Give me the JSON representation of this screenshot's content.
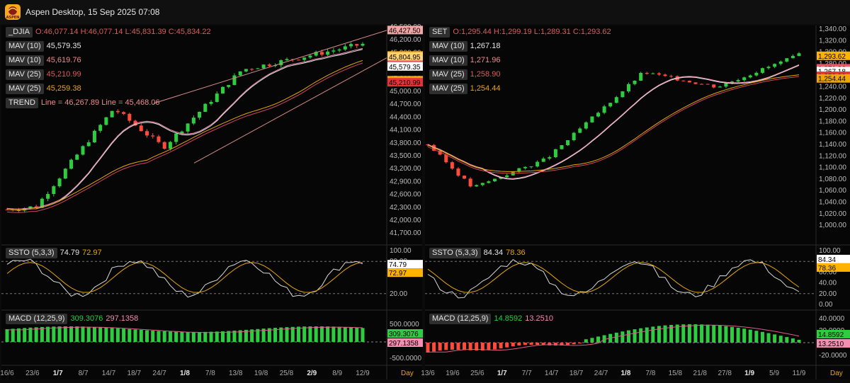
{
  "app": {
    "title": "Aspen Desktop, 15 Sep 2025 07:08",
    "logo_text": "ASPEN"
  },
  "colors": {
    "up": "#2ecc40",
    "down": "#ff4b3a",
    "pink": "#f48fb1",
    "orange": "#e6a800",
    "red_line": "#d6455a",
    "white": "#e8e8e8",
    "grid": "#1e1e1e"
  },
  "panels": [
    {
      "symbol": "_DJIA",
      "ohlc": "O:46,077.14 H:46,077.14 L:45,831.39 C:45,834.22",
      "legends": [
        {
          "name": "MAV (10)",
          "value": "45,579.35",
          "color": "#e8e8e8"
        },
        {
          "name": "MAV (10)",
          "value": "45,619.76",
          "color": "#f08a8a"
        },
        {
          "name": "MAV (25)",
          "value": "45,210.99",
          "color": "#e05a5a"
        },
        {
          "name": "MAV (25)",
          "value": "45,259.38",
          "color": "#e6a800"
        },
        {
          "name": "TREND",
          "value": "Line = 46,267.89  Line = 45,468.06",
          "color": "#f08a8a"
        }
      ],
      "price_axis": [
        "46,500.00",
        "46,200.00",
        "45,900.00",
        "45,600.00",
        "45,300.00",
        "45,000.00",
        "44,700.00",
        "44,400.00",
        "44,100.00",
        "43,800.00",
        "43,500.00",
        "43,200.00",
        "42,900.00",
        "42,600.00",
        "42,300.00",
        "42,000.00",
        "41,700.00"
      ],
      "price_tags": [
        {
          "text": "46,427.50",
          "bg": "#f4a6a6",
          "fg": "#000000",
          "value": 46427.5
        },
        {
          "text": "45,834.22",
          "bg": "#ffb300",
          "fg": "#000000",
          "value": 45834.22
        },
        {
          "text": "45,804.95",
          "bg": "#ffd27a",
          "fg": "#000000",
          "value": 45804.95
        },
        {
          "text": "45,619.76",
          "bg": "#ef5a6a",
          "fg": "#000000",
          "value": 45619.76
        },
        {
          "text": "45,579.35",
          "bg": "#ffffff",
          "fg": "#000000",
          "value": 45579.35
        },
        {
          "text": "45,259.38",
          "bg": "#f0a500",
          "fg": "#000000",
          "value": 45259.38
        },
        {
          "text": "45,210.99",
          "bg": "#e5323a",
          "fg": "#000000",
          "value": 45210.99
        }
      ],
      "ssto": {
        "name": "SSTO (5,3,3)",
        "k": "74.79",
        "d": "72.97",
        "axis": [
          "100.00",
          "80.00",
          "20.00"
        ],
        "tag_k": "74.79",
        "tag_d": "72.97"
      },
      "macd": {
        "name": "MACD (12,25,9)",
        "macd": "309.3076",
        "signal": "297.1358",
        "axis": [
          "500.0000",
          "-500.0000"
        ],
        "tag_macd": "309.3076",
        "tag_signal": "297.1358"
      },
      "dates": [
        "16/6",
        "23/6",
        "1/7",
        "8/7",
        "14/7",
        "18/7",
        "24/7",
        "1/8",
        "7/8",
        "13/8",
        "19/8",
        "25/8",
        "2/9",
        "8/9",
        "12/9"
      ],
      "bold_dates": [
        "1/7",
        "1/8",
        "2/9"
      ],
      "timeframe": "Day"
    },
    {
      "symbol": "SET",
      "ohlc": "O:1,295.44 H:1,299.19 L:1,289.31 C:1,293.62",
      "legends": [
        {
          "name": "MAV (10)",
          "value": "1,267.18",
          "color": "#e8e8e8"
        },
        {
          "name": "MAV (10)",
          "value": "1,271.96",
          "color": "#f08a8a"
        },
        {
          "name": "MAV (25)",
          "value": "1,258.90",
          "color": "#e05a5a"
        },
        {
          "name": "MAV (25)",
          "value": "1,254.44",
          "color": "#e6a800"
        }
      ],
      "price_axis": [
        "1,340.00",
        "1,320.00",
        "1,300.00",
        "1,280.00",
        "1,260.00",
        "1,240.00",
        "1,220.00",
        "1,200.00",
        "1,180.00",
        "1,160.00",
        "1,140.00",
        "1,120.00",
        "1,100.00",
        "1,080.00",
        "1,060.00",
        "1,040.00",
        "1,020.00",
        "1,000.00"
      ],
      "price_tags": [
        {
          "text": "1,293.62",
          "bg": "#ffb300",
          "fg": "#000000",
          "value": 1293.62
        },
        {
          "text": "1,271.96",
          "bg": "#ef5a6a",
          "fg": "#000000",
          "value": 1271.96
        },
        {
          "text": "1,267.18",
          "bg": "#ffffff",
          "fg": "#000000",
          "value": 1267.18
        },
        {
          "text": "1,258.90",
          "bg": "#e5323a",
          "fg": "#000000",
          "value": 1258.9
        },
        {
          "text": "1,254.44",
          "bg": "#f0a500",
          "fg": "#000000",
          "value": 1254.44
        }
      ],
      "ssto": {
        "name": "SSTO (5,3,3)",
        "k": "84.34",
        "d": "78.36",
        "axis": [
          "100.00",
          "80.00",
          "60.00",
          "40.00",
          "20.00",
          "0.00"
        ],
        "tag_k": "84.34",
        "tag_d": "78.36"
      },
      "macd": {
        "name": "MACD (12,25,9)",
        "macd": "14.8592",
        "signal": "13.2510",
        "axis": [
          "40.0000",
          "20.0000",
          "-20.0000"
        ],
        "tag_macd": "14.8592",
        "tag_signal": "13.2510"
      },
      "dates": [
        "13/6",
        "19/6",
        "25/6",
        "1/7",
        "7/7",
        "14/7",
        "18/7",
        "24/7",
        "1/8",
        "7/8",
        "15/8",
        "21/8",
        "27/8",
        "1/9",
        "5/9",
        "11/9"
      ],
      "bold_dates": [
        "1/7",
        "1/8",
        "1/9"
      ],
      "timeframe": "Day"
    }
  ]
}
